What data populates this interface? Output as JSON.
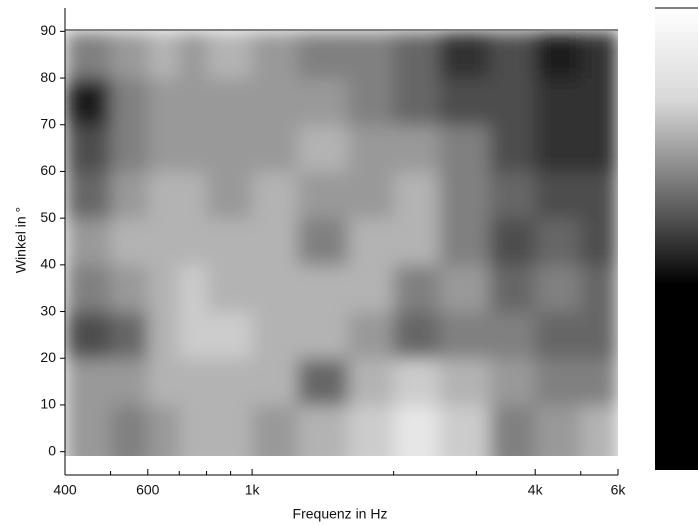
{
  "chart_data": {
    "type": "heatmap",
    "x_label": "Frequenz in Hz",
    "y_label": "Winkel in °",
    "x_scale": "log",
    "xlim": [
      400,
      6000
    ],
    "xticks": [
      400,
      600,
      {
        "value": 1000,
        "label": "1k"
      },
      {
        "value": 4000,
        "label": "4k"
      },
      {
        "value": 6000,
        "label": "6k"
      }
    ],
    "xminorticks": [
      500,
      700,
      800,
      900,
      2000,
      3000,
      5000
    ],
    "ylim": [
      -5,
      95
    ],
    "yticks": [
      0,
      10,
      20,
      30,
      40,
      50,
      60,
      70,
      80,
      90
    ],
    "xbins": [
      400,
      500,
      600,
      700,
      800,
      1000,
      1250,
      1600,
      2000,
      2500,
      3200,
      4000,
      5000,
      6000
    ],
    "ybins": [
      0,
      10,
      20,
      30,
      40,
      50,
      60,
      70,
      80,
      90
    ],
    "zlim": [
      0,
      10
    ],
    "colormap": "gray",
    "z": [
      [
        6,
        5,
        6,
        7,
        7,
        6,
        7,
        8,
        9,
        8,
        5,
        6,
        7
      ],
      [
        6,
        6,
        7,
        7,
        7,
        7,
        4,
        7,
        8,
        7,
        6,
        5,
        5
      ],
      [
        3,
        4,
        7,
        8,
        8,
        7,
        7,
        6,
        4,
        5,
        5,
        4,
        4
      ],
      [
        5,
        6,
        7,
        8,
        7,
        7,
        7,
        7,
        5,
        6,
        4,
        5,
        4
      ],
      [
        6,
        7,
        7,
        7,
        7,
        7,
        5,
        7,
        7,
        5,
        3,
        4,
        3
      ],
      [
        4,
        6,
        7,
        7,
        6,
        7,
        6,
        6,
        7,
        5,
        4,
        3,
        3
      ],
      [
        3,
        5,
        6,
        6,
        6,
        6,
        7,
        6,
        6,
        5,
        3,
        2,
        2
      ],
      [
        1,
        5,
        6,
        6,
        6,
        6,
        6,
        5,
        4,
        3,
        3,
        2,
        2
      ],
      [
        5,
        6,
        7,
        6,
        7,
        6,
        5,
        5,
        4,
        2,
        3,
        1,
        2
      ]
    ]
  }
}
